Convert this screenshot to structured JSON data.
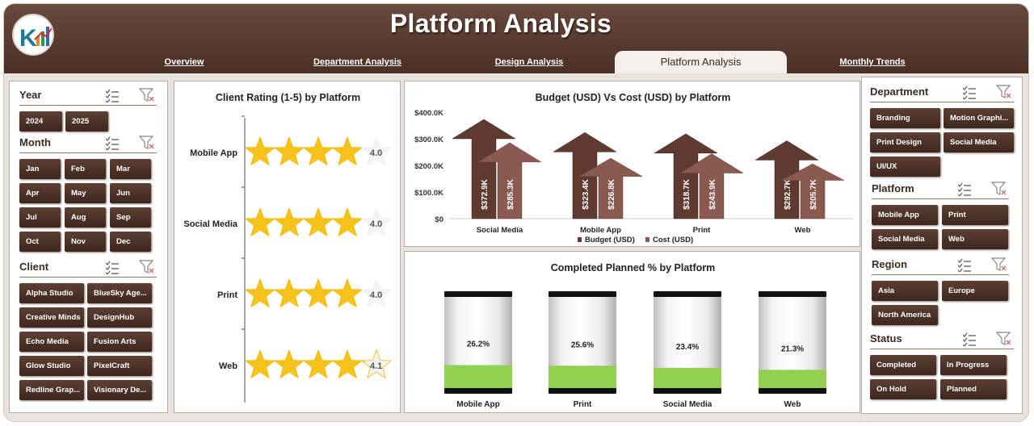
{
  "title": "Platform Analysis",
  "tabs": [
    "Overview",
    "Department Analysis",
    "Design Analysis",
    "Platform Analysis",
    "Monthly Trends"
  ],
  "active_tab": "Platform Analysis",
  "left_slicers": {
    "year": {
      "title": "Year",
      "items": [
        "2024",
        "2025"
      ]
    },
    "month": {
      "title": "Month",
      "items": [
        "Jan",
        "Feb",
        "Mar",
        "Apr",
        "May",
        "Jun",
        "Jul",
        "Aug",
        "Sep",
        "Oct",
        "Nov",
        "Dec"
      ]
    },
    "client": {
      "title": "Client",
      "items": [
        "Alpha Studio",
        "BlueSky Age...",
        "Creative Minds",
        "DesignHub",
        "Echo Media",
        "Fusion Arts",
        "Glow Studio",
        "PixelCraft",
        "Redline Grap...",
        "Visionary De..."
      ]
    }
  },
  "right_slicers": {
    "department": {
      "title": "Department",
      "items": [
        "Branding",
        "Motion Graphi...",
        "Print Design",
        "Social Media",
        "UI/UX"
      ]
    },
    "platform": {
      "title": "Platform",
      "items": [
        "Mobile App",
        "Print",
        "Social Media",
        "Web"
      ]
    },
    "region": {
      "title": "Region",
      "items": [
        "Asia",
        "Europe",
        "North America"
      ]
    },
    "status": {
      "title": "Status",
      "items": [
        "Completed",
        "In Progress",
        "On Hold",
        "Planned"
      ]
    }
  },
  "colors": {
    "header": "#4a2f25",
    "button": "#4a2f25",
    "star": "#f7c21a",
    "budget": "#5e3a30",
    "cost": "#8a5a50",
    "progress": "#92d050"
  },
  "rating_chart": {
    "title": "Client Rating (1-5) by Platform",
    "items": [
      {
        "platform": "Mobile App",
        "rating": 4.0,
        "label": "4.0"
      },
      {
        "platform": "Social Media",
        "rating": 4.0,
        "label": "4.0"
      },
      {
        "platform": "Print",
        "rating": 4.0,
        "label": "4.0"
      },
      {
        "platform": "Web",
        "rating": 4.1,
        "label": "4.1"
      }
    ]
  },
  "chart_data": [
    {
      "type": "bar",
      "title": "Budget (USD) Vs Cost (USD) by Platform",
      "categories": [
        "Social Media",
        "Mobile App",
        "Print",
        "Web"
      ],
      "series": [
        {
          "name": "Budget (USD)",
          "values": [
            372900,
            323400,
            318700,
            292700
          ],
          "labels": [
            "$372.9K",
            "$323.4K",
            "$318.7K",
            "$292.7K"
          ]
        },
        {
          "name": "Cost (USD)",
          "values": [
            285300,
            226800,
            243900,
            205700
          ],
          "labels": [
            "$285.3K",
            "$226.8K",
            "$243.9K",
            "$205.7K"
          ]
        }
      ],
      "yticks": [
        "$0",
        "$100.0K",
        "$200.0K",
        "$300.0K",
        "$400.0K"
      ],
      "ylim": [
        0,
        400000
      ],
      "legend": "bottom"
    },
    {
      "type": "bar",
      "title": "Completed Planned % by Platform",
      "categories": [
        "Mobile App",
        "Print",
        "Social Media",
        "Web"
      ],
      "values": [
        26.2,
        25.6,
        23.4,
        21.3
      ],
      "labels": [
        "26.2%",
        "25.6%",
        "23.4%",
        "21.3%"
      ],
      "ylim": [
        0,
        100
      ]
    }
  ]
}
